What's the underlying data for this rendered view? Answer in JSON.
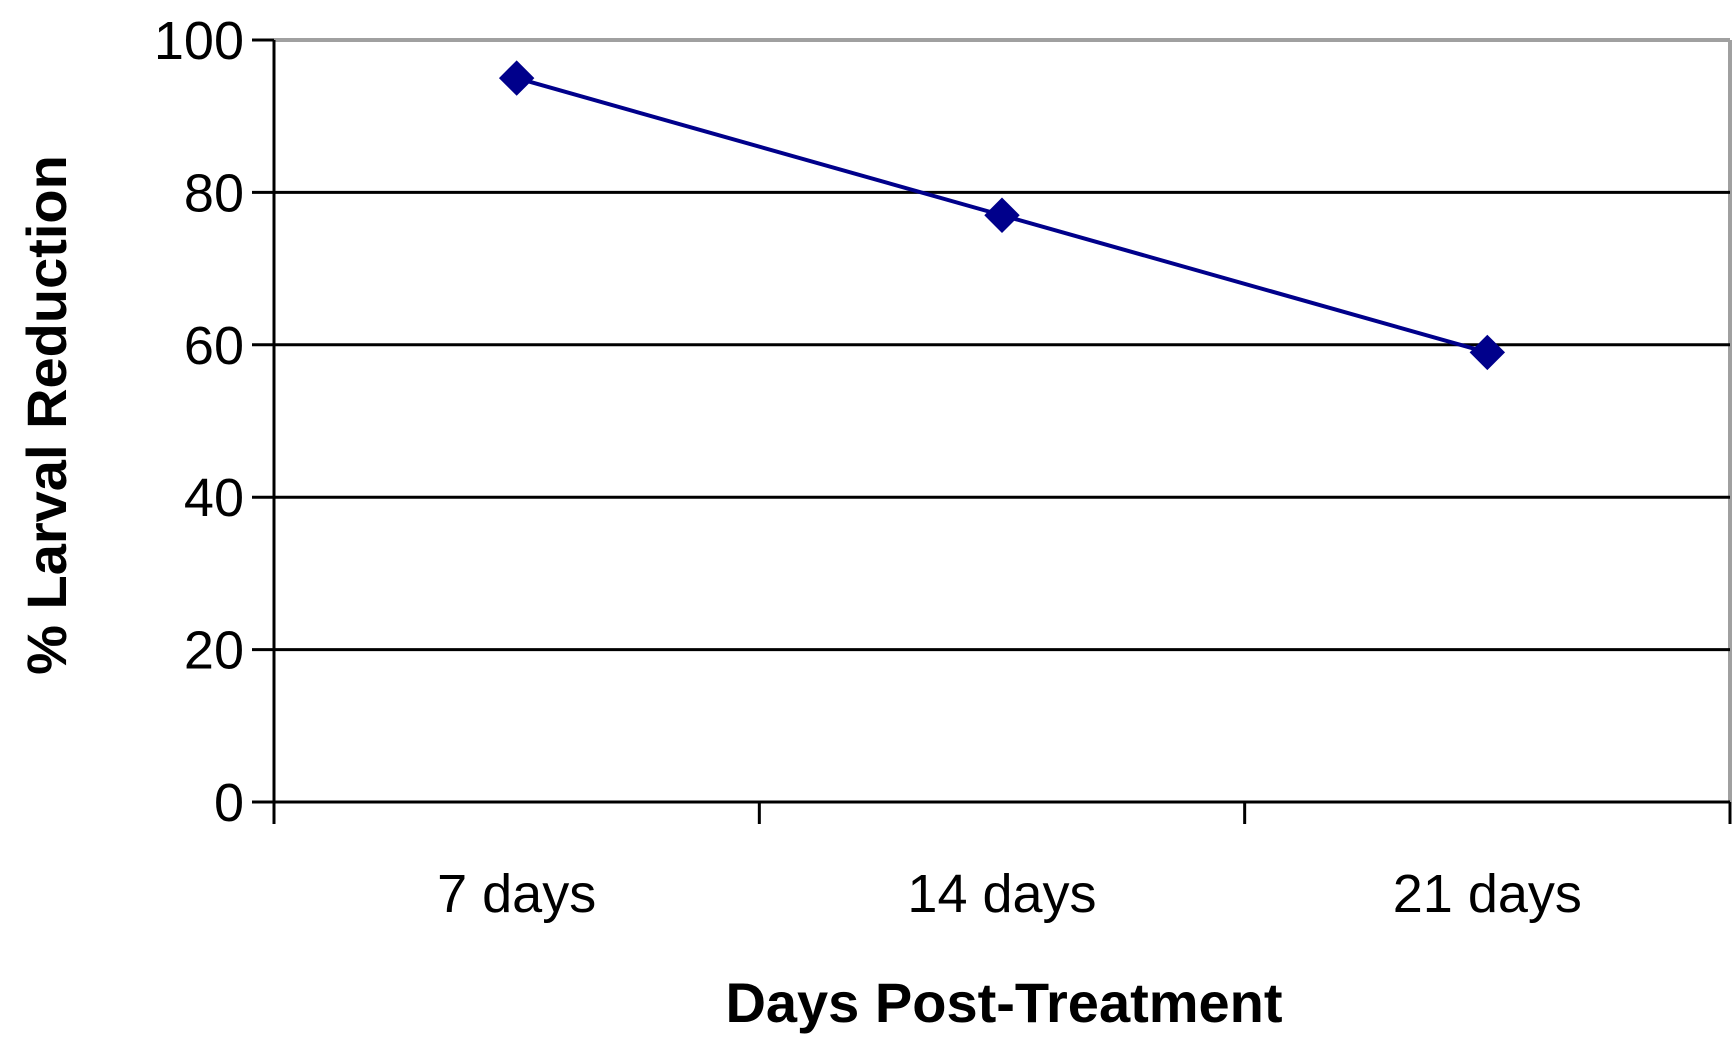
{
  "chart_data": {
    "type": "line",
    "categories": [
      "7 days",
      "14 days",
      "21 days"
    ],
    "series": [
      {
        "values": [
          95,
          77,
          59
        ],
        "color": "#00008b"
      }
    ],
    "xlabel": "Days Post-Treatment",
    "ylabel": "% Larval Reduction",
    "ylim": [
      0,
      100
    ],
    "yticks": [
      "0",
      "20",
      "40",
      "60",
      "80",
      "100"
    ],
    "grid": true,
    "marker": "diamond",
    "colors": {
      "series": "#00008b",
      "gridline": "#000000",
      "plot_border": "#a0a0a0",
      "axis": "#000000"
    }
  }
}
